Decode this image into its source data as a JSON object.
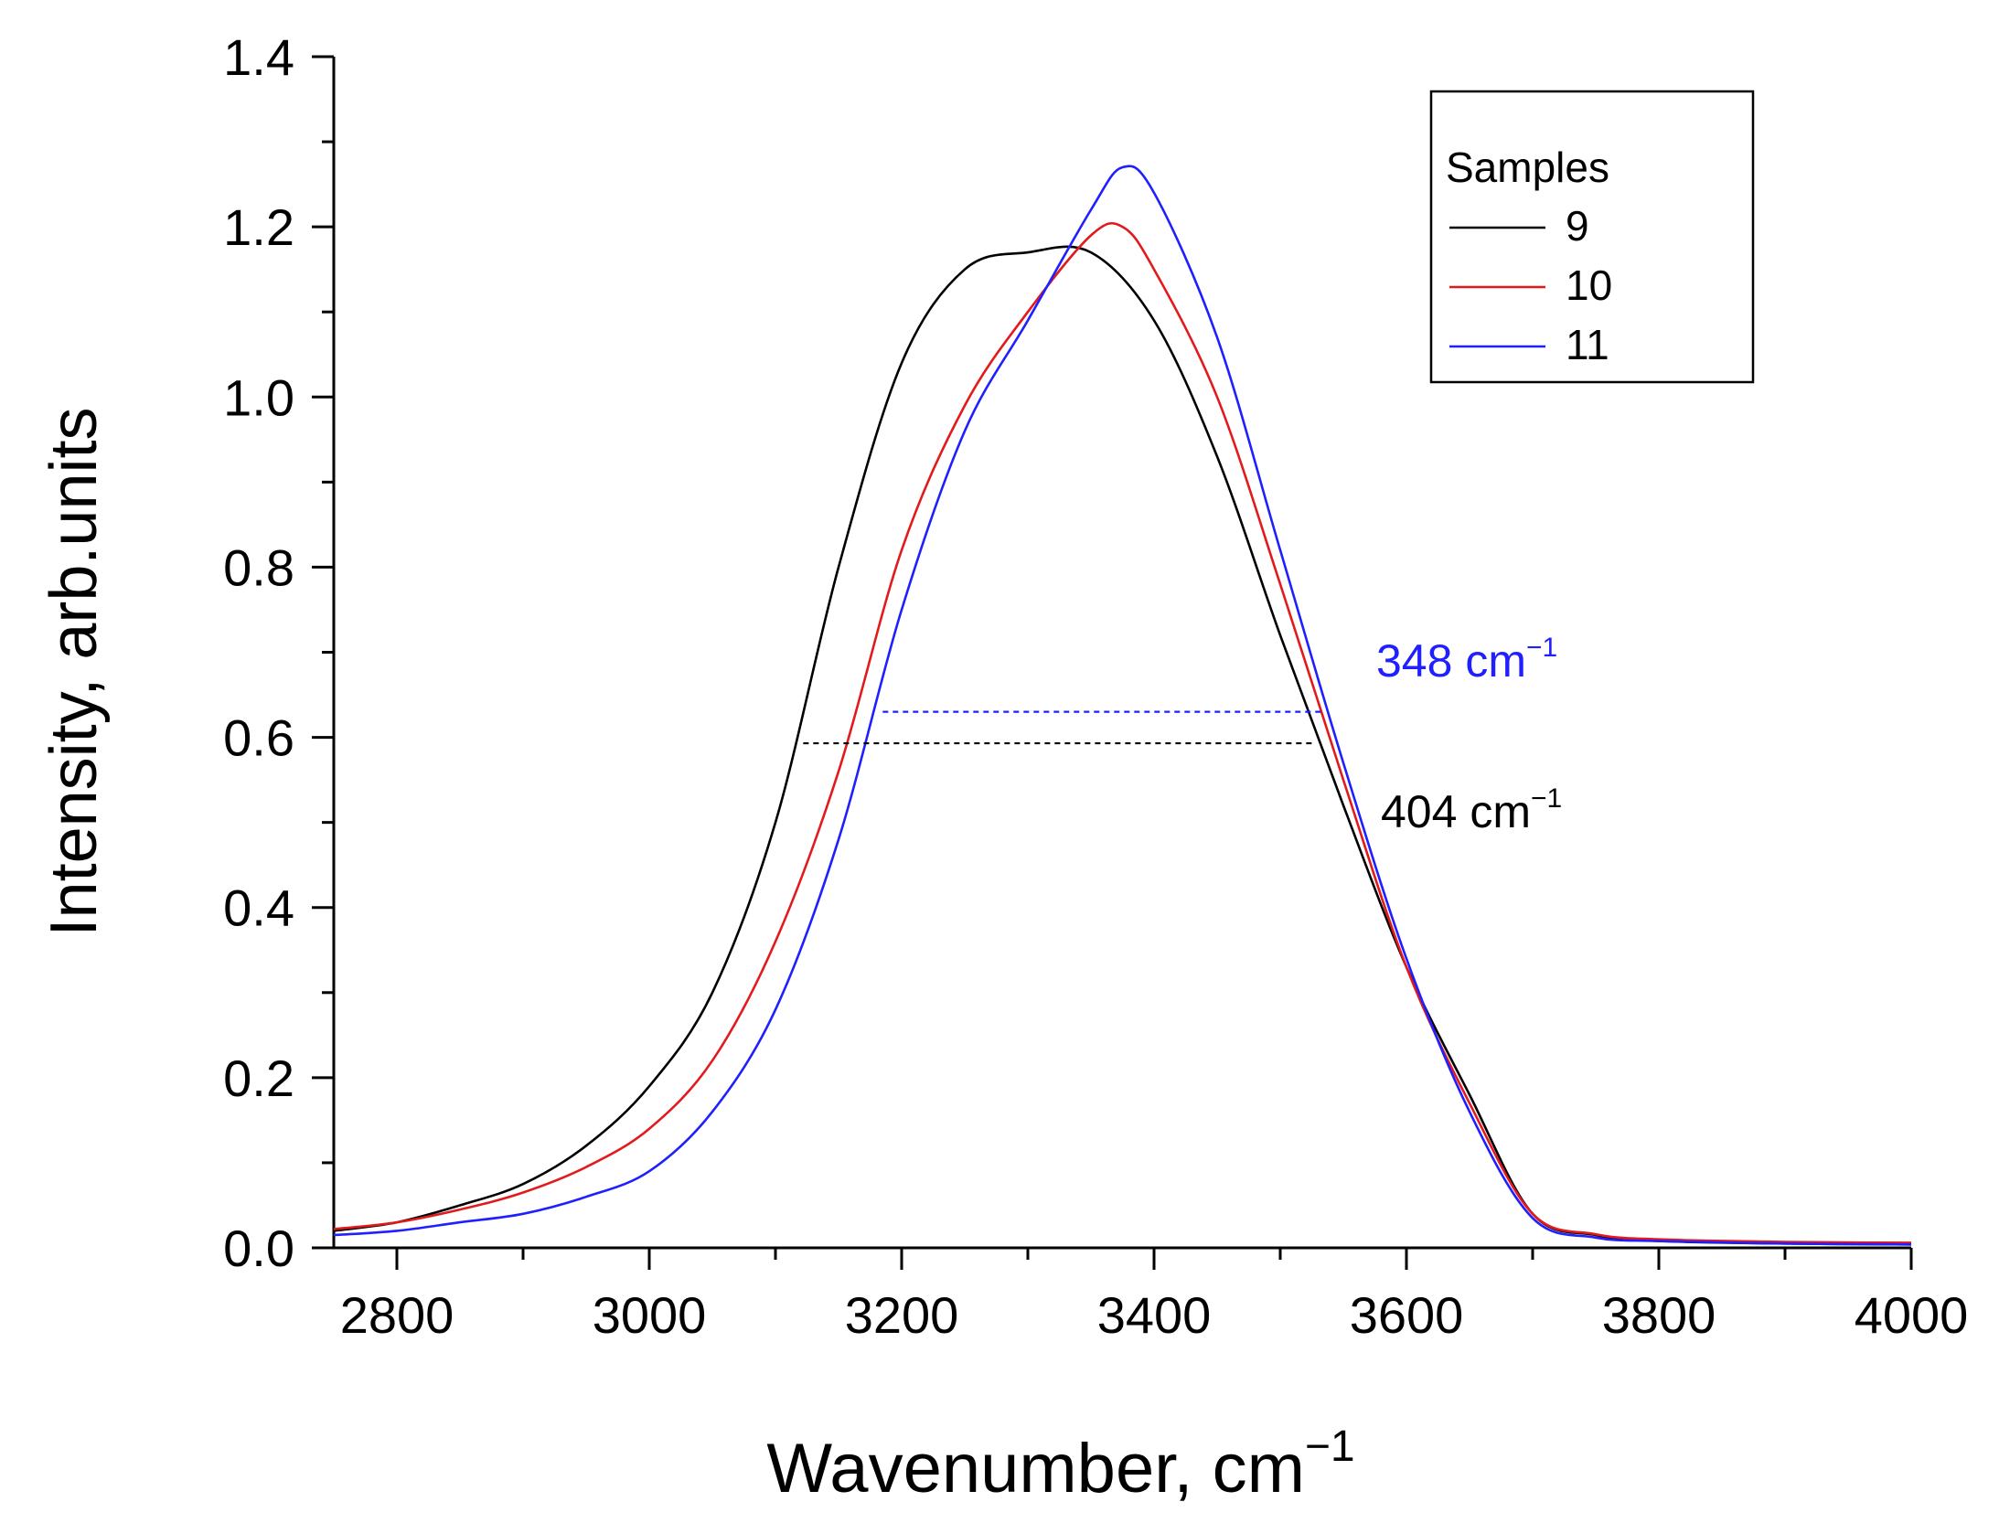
{
  "chart_data": {
    "type": "line",
    "xlabel": "Wavenumber, cm",
    "xlabel_sup": "−1",
    "ylabel": "Intensity, arb.units",
    "xlim": [
      2750,
      4000
    ],
    "ylim": [
      0,
      1.4
    ],
    "x_ticks": [
      "2800",
      "3000",
      "3200",
      "3400",
      "3600",
      "3800",
      "4000"
    ],
    "y_ticks": [
      "0.0",
      "0.2",
      "0.4",
      "0.6",
      "0.8",
      "1.0",
      "1.2",
      "1.4"
    ],
    "legend": {
      "title": "Samples",
      "position": "top-right",
      "entries": [
        "9",
        "10",
        "11"
      ]
    },
    "series": [
      {
        "name": "9",
        "color": "#000000",
        "x": [
          2750,
          2800,
          2850,
          2900,
          2950,
          3000,
          3050,
          3100,
          3150,
          3200,
          3250,
          3300,
          3350,
          3400,
          3450,
          3500,
          3550,
          3600,
          3650,
          3700,
          3750,
          3800,
          3900,
          4000
        ],
        "y": [
          0.02,
          0.03,
          0.05,
          0.075,
          0.12,
          0.19,
          0.3,
          0.5,
          0.8,
          1.04,
          1.15,
          1.17,
          1.17,
          1.09,
          0.93,
          0.72,
          0.52,
          0.33,
          0.18,
          0.04,
          0.015,
          0.008,
          0.005,
          0.004
        ]
      },
      {
        "name": "10",
        "color": "#e31a1c",
        "x": [
          2750,
          2800,
          2850,
          2900,
          2950,
          3000,
          3050,
          3100,
          3150,
          3200,
          3250,
          3300,
          3350,
          3375,
          3400,
          3450,
          3500,
          3550,
          3600,
          3650,
          3700,
          3750,
          3800,
          3900,
          4000
        ],
        "y": [
          0.022,
          0.03,
          0.045,
          0.065,
          0.095,
          0.14,
          0.22,
          0.36,
          0.56,
          0.82,
          0.99,
          1.1,
          1.19,
          1.2,
          1.15,
          1.0,
          0.78,
          0.55,
          0.33,
          0.17,
          0.04,
          0.016,
          0.01,
          0.007,
          0.006
        ]
      },
      {
        "name": "11",
        "color": "#1f1fff",
        "x": [
          2750,
          2800,
          2850,
          2900,
          2950,
          3000,
          3050,
          3100,
          3150,
          3200,
          3250,
          3300,
          3350,
          3375,
          3400,
          3450,
          3500,
          3550,
          3600,
          3650,
          3700,
          3750,
          3800,
          3900,
          4000
        ],
        "y": [
          0.015,
          0.02,
          0.03,
          0.04,
          0.06,
          0.09,
          0.16,
          0.28,
          0.48,
          0.75,
          0.96,
          1.09,
          1.22,
          1.27,
          1.24,
          1.07,
          0.82,
          0.57,
          0.34,
          0.16,
          0.035,
          0.012,
          0.008,
          0.005,
          0.004
        ]
      }
    ],
    "fwhm_markers": [
      {
        "label": "348 cm",
        "sup": "−1",
        "color": "#1f1fff",
        "y": 0.63,
        "x_start": 3185,
        "x_end": 3533
      },
      {
        "label": "404 cm",
        "sup": "−1",
        "color": "#000000",
        "y": 0.593,
        "x_start": 3122,
        "x_end": 3526
      }
    ]
  }
}
